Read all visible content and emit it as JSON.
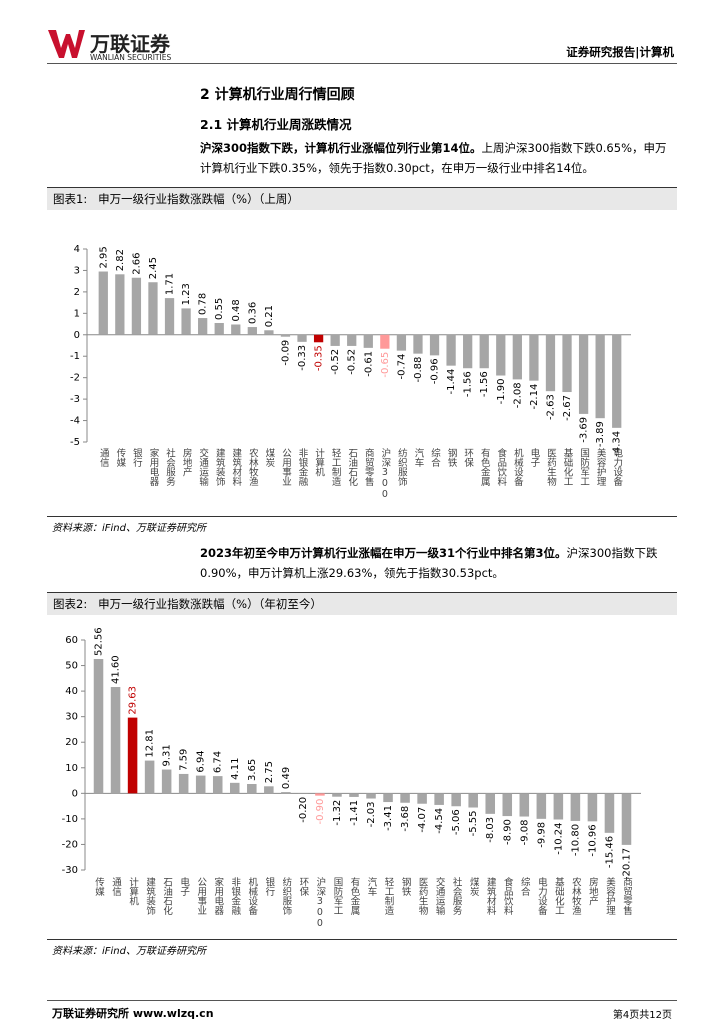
{
  "header": {
    "brand": "万联证券",
    "brand_en": "WANLIAN SECURITIES",
    "right": "证券研究报告|计算机"
  },
  "section": {
    "title": "2 计算机行业周行情回顾",
    "subtitle": "2.1 计算机行业周涨跌情况"
  },
  "paragraphs": [
    {
      "bold": "沪深300指数下跌，计算机行业涨幅位列行业第14位。",
      "text": "上周沪深300指数下跌0.65%，申万计算机行业下跌0.35%，领先于指数0.30pct，在申万一级行业中排名14位。"
    },
    {
      "bold": "2023年初至今申万计算机行业涨幅在申万一级31个行业中排名第3位。",
      "text": "沪深300指数下跌0.90%，申万计算机上涨29.63%，领先于指数30.53pct。"
    }
  ],
  "chart_data": [
    {
      "type": "bar",
      "label": "图表1:",
      "title": "申万一级行业指数涨跌幅（%）（上周）",
      "source": "资料来源：iFind、万联证券研究所",
      "categories": [
        "通信",
        "传媒",
        "银行",
        "家用电器",
        "社会服务",
        "房地产",
        "交通运输",
        "建筑装饰",
        "建筑材料",
        "农林牧渔",
        "煤炭",
        "公用事业",
        "非银金融",
        "计算机",
        "轻工制造",
        "石油石化",
        "商贸零售",
        "沪深300",
        "纺织服饰",
        "汽车",
        "综合",
        "钢铁",
        "环保",
        "有色金属",
        "食品饮料",
        "机械设备",
        "电子",
        "医药生物",
        "基础化工",
        "国防军工",
        "美容护理",
        "电力设备"
      ],
      "values": [
        2.95,
        2.82,
        2.66,
        2.45,
        1.71,
        1.23,
        0.78,
        0.55,
        0.48,
        0.36,
        0.21,
        -0.09,
        -0.33,
        -0.35,
        -0.52,
        -0.52,
        -0.61,
        -0.65,
        -0.74,
        -0.88,
        -0.96,
        -1.44,
        -1.56,
        -1.56,
        -1.9,
        -2.08,
        -2.14,
        -2.63,
        -2.67,
        -3.69,
        -3.89,
        -4.34
      ],
      "value_labels": [
        "2.95",
        "2.82",
        "2.66",
        "2.45",
        "1.71",
        "1.23",
        "0.78",
        "0.55",
        "0.48",
        "0.36",
        "0.21",
        "-0.09",
        "-0.33",
        "-0.35",
        "-0.52",
        "-0.52",
        "-0.61",
        "-0.65",
        "-0.74",
        "-0.88",
        "-0.96",
        "-1.44",
        "-1.56",
        "-1.56",
        "-1.90",
        "-2.08",
        "-2.14",
        "-2.63",
        "-2.67",
        "-3.69",
        "-3.89",
        "-4.34"
      ],
      "color": "#a6a6a6",
      "colors": [
        "#a6a6a6",
        "#a6a6a6",
        "#a6a6a6",
        "#a6a6a6",
        "#a6a6a6",
        "#a6a6a6",
        "#a6a6a6",
        "#a6a6a6",
        "#a6a6a6",
        "#a6a6a6",
        "#a6a6a6",
        "#a6a6a6",
        "#a6a6a6",
        "#c00000",
        "#a6a6a6",
        "#a6a6a6",
        "#a6a6a6",
        "#ff9999",
        "#a6a6a6",
        "#a6a6a6",
        "#a6a6a6",
        "#a6a6a6",
        "#a6a6a6",
        "#a6a6a6",
        "#a6a6a6",
        "#a6a6a6",
        "#a6a6a6",
        "#a6a6a6",
        "#a6a6a6",
        "#a6a6a6",
        "#a6a6a6",
        "#a6a6a6"
      ],
      "ylim": [
        -5,
        4
      ],
      "yticks": [
        4,
        3,
        2,
        1,
        0,
        -1,
        -2,
        -3,
        -4,
        -5
      ]
    },
    {
      "type": "bar",
      "label": "图表2:",
      "title": "申万一级行业指数涨跌幅（%）（年初至今）",
      "source": "资料来源：iFind、万联证券研究所",
      "categories": [
        "传媒",
        "通信",
        "计算机",
        "建筑装饰",
        "石油石化",
        "电子",
        "公用事业",
        "家用电器",
        "非银金融",
        "机械设备",
        "银行",
        "纺织服饰",
        "环保",
        "沪深300",
        "国防军工",
        "有色金属",
        "汽车",
        "轻工制造",
        "钢铁",
        "医药生物",
        "交通运输",
        "社会服务",
        "煤炭",
        "建筑材料",
        "食品饮料",
        "综合",
        "电力设备",
        "基础化工",
        "农林牧渔",
        "房地产",
        "美容护理",
        "商贸零售"
      ],
      "values": [
        52.56,
        41.6,
        29.63,
        12.81,
        9.31,
        7.59,
        6.94,
        6.74,
        4.11,
        3.65,
        2.75,
        0.49,
        -0.2,
        -0.9,
        -1.32,
        -1.41,
        -2.03,
        -3.41,
        -3.68,
        -4.07,
        -4.54,
        -5.06,
        -5.55,
        -8.03,
        -8.9,
        -9.08,
        -9.98,
        -10.24,
        -10.8,
        -10.96,
        -15.46,
        -20.17
      ],
      "value_labels": [
        "52.56",
        "41.60",
        "29.63",
        "12.81",
        "9.31",
        "7.59",
        "6.94",
        "6.74",
        "4.11",
        "3.65",
        "2.75",
        "0.49",
        "-0.20",
        "-0.90",
        "-1.32",
        "-1.41",
        "-2.03",
        "-3.41",
        "-3.68",
        "-4.07",
        "-4.54",
        "-5.06",
        "-5.55",
        "-8.03",
        "-8.90",
        "-9.08",
        "-9.98",
        "-10.24",
        "-10.80",
        "-10.96",
        "-15.46",
        "-20.17"
      ],
      "color": "#a6a6a6",
      "colors": [
        "#a6a6a6",
        "#a6a6a6",
        "#c00000",
        "#a6a6a6",
        "#a6a6a6",
        "#a6a6a6",
        "#a6a6a6",
        "#a6a6a6",
        "#a6a6a6",
        "#a6a6a6",
        "#a6a6a6",
        "#a6a6a6",
        "#a6a6a6",
        "#ff9999",
        "#a6a6a6",
        "#a6a6a6",
        "#a6a6a6",
        "#a6a6a6",
        "#a6a6a6",
        "#a6a6a6",
        "#a6a6a6",
        "#a6a6a6",
        "#a6a6a6",
        "#a6a6a6",
        "#a6a6a6",
        "#a6a6a6",
        "#a6a6a6",
        "#a6a6a6",
        "#a6a6a6",
        "#a6a6a6",
        "#a6a6a6",
        "#a6a6a6"
      ],
      "ylim": [
        -30,
        60
      ],
      "yticks": [
        60,
        50,
        40,
        30,
        20,
        10,
        0,
        -10,
        -20,
        -30
      ]
    }
  ],
  "footer": {
    "left": "万联证券研究所 www.wlzq.cn",
    "right": "第4页共12页"
  }
}
